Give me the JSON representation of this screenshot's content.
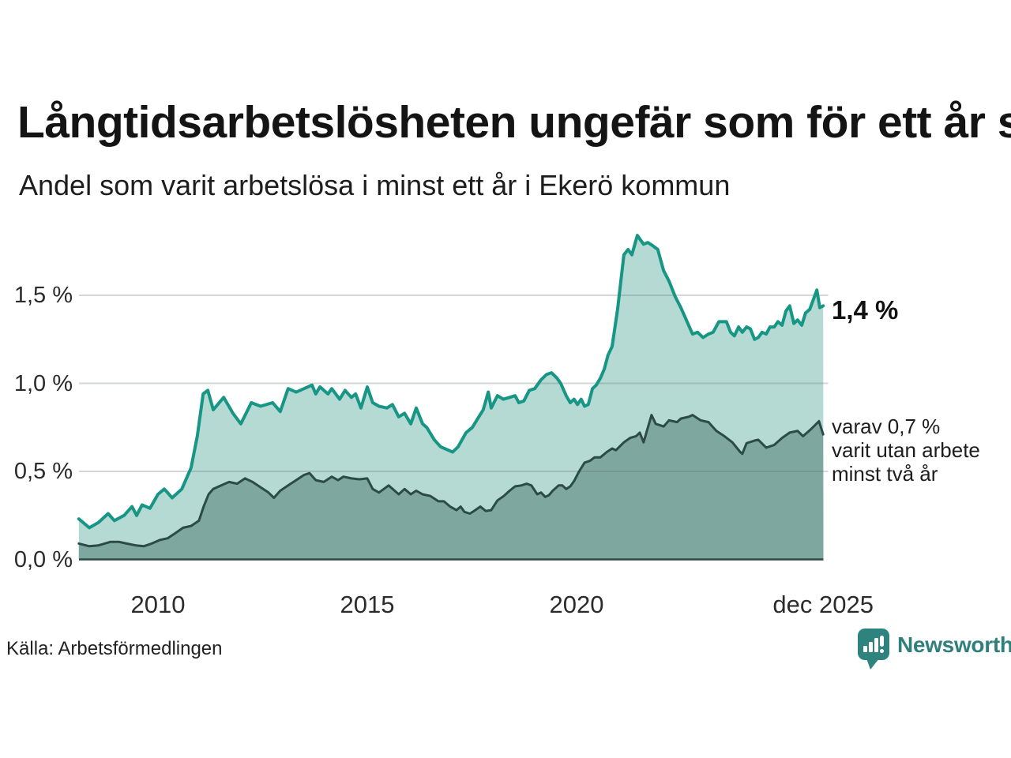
{
  "header": {
    "title": "Långtidsarbetslösheten ungefär som för ett år sen",
    "subtitle": "Andel som varit arbetslösa i minst ett år i Ekerö kommun"
  },
  "chart_data": {
    "type": "area",
    "title": "Långtidsarbetslösheten ungefär som för ett år sen",
    "subtitle": "Andel som varit arbetslösa i minst ett år i Ekerö kommun",
    "unit": "%",
    "grid": true,
    "ylim": [
      0,
      1.9
    ],
    "x_range": [
      2008.11,
      2025.92
    ],
    "y_ticks": [
      {
        "value": 0.0,
        "label": "0,0 %"
      },
      {
        "value": 0.5,
        "label": "0,5 %"
      },
      {
        "value": 1.0,
        "label": "1,0 %"
      },
      {
        "value": 1.5,
        "label": "1,5 %"
      }
    ],
    "x_ticks": [
      {
        "year": 2010,
        "label": "2010"
      },
      {
        "year": 2015,
        "label": "2015"
      },
      {
        "year": 2020,
        "label": "2020"
      },
      {
        "year": 2025.89,
        "label": "dec 2025"
      }
    ],
    "series": [
      {
        "name": "arbetslösa minst ett år",
        "color": "#179585",
        "fill": "#b4dad3",
        "end_value_label": "1,4 %",
        "points": [
          [
            2008.11,
            0.23
          ],
          [
            2008.36,
            0.18
          ],
          [
            2008.58,
            0.21
          ],
          [
            2008.81,
            0.26
          ],
          [
            2008.96,
            0.22
          ],
          [
            2009.19,
            0.25
          ],
          [
            2009.38,
            0.3
          ],
          [
            2009.49,
            0.25
          ],
          [
            2009.62,
            0.31
          ],
          [
            2009.81,
            0.29
          ],
          [
            2010.0,
            0.37
          ],
          [
            2010.15,
            0.4
          ],
          [
            2010.34,
            0.35
          ],
          [
            2010.57,
            0.4
          ],
          [
            2010.79,
            0.52
          ],
          [
            2010.94,
            0.7
          ],
          [
            2011.08,
            0.94
          ],
          [
            2011.19,
            0.96
          ],
          [
            2011.32,
            0.85
          ],
          [
            2011.57,
            0.92
          ],
          [
            2011.79,
            0.83
          ],
          [
            2011.98,
            0.77
          ],
          [
            2012.23,
            0.89
          ],
          [
            2012.45,
            0.87
          ],
          [
            2012.74,
            0.89
          ],
          [
            2012.92,
            0.84
          ],
          [
            2013.11,
            0.97
          ],
          [
            2013.3,
            0.95
          ],
          [
            2013.49,
            0.97
          ],
          [
            2013.68,
            0.99
          ],
          [
            2013.77,
            0.94
          ],
          [
            2013.87,
            0.98
          ],
          [
            2014.06,
            0.94
          ],
          [
            2014.15,
            0.97
          ],
          [
            2014.34,
            0.91
          ],
          [
            2014.47,
            0.96
          ],
          [
            2014.62,
            0.92
          ],
          [
            2014.72,
            0.94
          ],
          [
            2014.85,
            0.86
          ],
          [
            2015.0,
            0.98
          ],
          [
            2015.13,
            0.89
          ],
          [
            2015.28,
            0.87
          ],
          [
            2015.47,
            0.86
          ],
          [
            2015.6,
            0.88
          ],
          [
            2015.75,
            0.81
          ],
          [
            2015.89,
            0.83
          ],
          [
            2016.04,
            0.77
          ],
          [
            2016.17,
            0.86
          ],
          [
            2016.32,
            0.77
          ],
          [
            2016.42,
            0.75
          ],
          [
            2016.6,
            0.68
          ],
          [
            2016.75,
            0.64
          ],
          [
            2017.04,
            0.61
          ],
          [
            2017.17,
            0.64
          ],
          [
            2017.36,
            0.72
          ],
          [
            2017.51,
            0.75
          ],
          [
            2017.64,
            0.8
          ],
          [
            2017.77,
            0.85
          ],
          [
            2017.89,
            0.95
          ],
          [
            2017.96,
            0.86
          ],
          [
            2018.11,
            0.93
          ],
          [
            2018.25,
            0.91
          ],
          [
            2018.4,
            0.92
          ],
          [
            2018.53,
            0.93
          ],
          [
            2018.62,
            0.89
          ],
          [
            2018.74,
            0.9
          ],
          [
            2018.87,
            0.96
          ],
          [
            2019.0,
            0.97
          ],
          [
            2019.15,
            1.02
          ],
          [
            2019.28,
            1.05
          ],
          [
            2019.4,
            1.06
          ],
          [
            2019.53,
            1.03
          ],
          [
            2019.62,
            1.0
          ],
          [
            2019.75,
            0.93
          ],
          [
            2019.85,
            0.89
          ],
          [
            2019.94,
            0.91
          ],
          [
            2020.02,
            0.88
          ],
          [
            2020.11,
            0.91
          ],
          [
            2020.19,
            0.87
          ],
          [
            2020.28,
            0.88
          ],
          [
            2020.38,
            0.97
          ],
          [
            2020.47,
            0.99
          ],
          [
            2020.57,
            1.03
          ],
          [
            2020.66,
            1.08
          ],
          [
            2020.75,
            1.16
          ],
          [
            2020.85,
            1.21
          ],
          [
            2020.98,
            1.42
          ],
          [
            2021.13,
            1.73
          ],
          [
            2021.23,
            1.76
          ],
          [
            2021.32,
            1.73
          ],
          [
            2021.45,
            1.84
          ],
          [
            2021.6,
            1.79
          ],
          [
            2021.7,
            1.8
          ],
          [
            2021.83,
            1.78
          ],
          [
            2021.94,
            1.76
          ],
          [
            2022.08,
            1.64
          ],
          [
            2022.21,
            1.58
          ],
          [
            2022.36,
            1.49
          ],
          [
            2022.49,
            1.43
          ],
          [
            2022.64,
            1.35
          ],
          [
            2022.77,
            1.28
          ],
          [
            2022.89,
            1.29
          ],
          [
            2023.02,
            1.26
          ],
          [
            2023.15,
            1.28
          ],
          [
            2023.26,
            1.29
          ],
          [
            2023.4,
            1.35
          ],
          [
            2023.58,
            1.35
          ],
          [
            2023.68,
            1.29
          ],
          [
            2023.77,
            1.27
          ],
          [
            2023.87,
            1.32
          ],
          [
            2023.96,
            1.29
          ],
          [
            2024.06,
            1.32
          ],
          [
            2024.15,
            1.31
          ],
          [
            2024.25,
            1.25
          ],
          [
            2024.34,
            1.26
          ],
          [
            2024.43,
            1.29
          ],
          [
            2024.53,
            1.28
          ],
          [
            2024.62,
            1.32
          ],
          [
            2024.72,
            1.32
          ],
          [
            2024.81,
            1.35
          ],
          [
            2024.91,
            1.33
          ],
          [
            2025.0,
            1.41
          ],
          [
            2025.09,
            1.44
          ],
          [
            2025.19,
            1.34
          ],
          [
            2025.28,
            1.36
          ],
          [
            2025.38,
            1.33
          ],
          [
            2025.47,
            1.4
          ],
          [
            2025.57,
            1.42
          ],
          [
            2025.74,
            1.53
          ],
          [
            2025.81,
            1.43
          ],
          [
            2025.89,
            1.44
          ]
        ]
      },
      {
        "name": "varav utan arbete minst två år",
        "color": "#2c4b46",
        "fill": "#7da79f",
        "end_value_label": "0,7 %",
        "points": [
          [
            2008.11,
            0.09
          ],
          [
            2008.36,
            0.075
          ],
          [
            2008.58,
            0.08
          ],
          [
            2008.87,
            0.1
          ],
          [
            2009.06,
            0.1
          ],
          [
            2009.25,
            0.09
          ],
          [
            2009.47,
            0.08
          ],
          [
            2009.66,
            0.075
          ],
          [
            2009.85,
            0.09
          ],
          [
            2010.04,
            0.11
          ],
          [
            2010.23,
            0.12
          ],
          [
            2010.42,
            0.15
          ],
          [
            2010.6,
            0.18
          ],
          [
            2010.79,
            0.19
          ],
          [
            2010.98,
            0.22
          ],
          [
            2011.09,
            0.3
          ],
          [
            2011.21,
            0.37
          ],
          [
            2011.32,
            0.4
          ],
          [
            2011.51,
            0.42
          ],
          [
            2011.7,
            0.44
          ],
          [
            2011.89,
            0.43
          ],
          [
            2012.08,
            0.46
          ],
          [
            2012.26,
            0.44
          ],
          [
            2012.45,
            0.41
          ],
          [
            2012.64,
            0.38
          ],
          [
            2012.77,
            0.35
          ],
          [
            2012.92,
            0.39
          ],
          [
            2013.11,
            0.42
          ],
          [
            2013.3,
            0.45
          ],
          [
            2013.49,
            0.48
          ],
          [
            2013.62,
            0.49
          ],
          [
            2013.77,
            0.45
          ],
          [
            2013.96,
            0.44
          ],
          [
            2014.15,
            0.47
          ],
          [
            2014.3,
            0.45
          ],
          [
            2014.43,
            0.47
          ],
          [
            2014.62,
            0.46
          ],
          [
            2014.81,
            0.455
          ],
          [
            2015.0,
            0.46
          ],
          [
            2015.13,
            0.4
          ],
          [
            2015.28,
            0.38
          ],
          [
            2015.51,
            0.42
          ],
          [
            2015.75,
            0.37
          ],
          [
            2015.89,
            0.4
          ],
          [
            2016.04,
            0.37
          ],
          [
            2016.17,
            0.39
          ],
          [
            2016.32,
            0.37
          ],
          [
            2016.51,
            0.36
          ],
          [
            2016.7,
            0.33
          ],
          [
            2016.83,
            0.33
          ],
          [
            2016.98,
            0.3
          ],
          [
            2017.13,
            0.28
          ],
          [
            2017.23,
            0.3
          ],
          [
            2017.32,
            0.27
          ],
          [
            2017.45,
            0.26
          ],
          [
            2017.58,
            0.28
          ],
          [
            2017.7,
            0.3
          ],
          [
            2017.83,
            0.275
          ],
          [
            2017.96,
            0.28
          ],
          [
            2018.11,
            0.335
          ],
          [
            2018.26,
            0.36
          ],
          [
            2018.4,
            0.39
          ],
          [
            2018.53,
            0.415
          ],
          [
            2018.68,
            0.42
          ],
          [
            2018.81,
            0.43
          ],
          [
            2018.92,
            0.42
          ],
          [
            2019.06,
            0.37
          ],
          [
            2019.15,
            0.38
          ],
          [
            2019.25,
            0.355
          ],
          [
            2019.34,
            0.365
          ],
          [
            2019.43,
            0.39
          ],
          [
            2019.57,
            0.42
          ],
          [
            2019.66,
            0.42
          ],
          [
            2019.75,
            0.4
          ],
          [
            2019.85,
            0.415
          ],
          [
            2019.94,
            0.445
          ],
          [
            2020.06,
            0.5
          ],
          [
            2020.19,
            0.55
          ],
          [
            2020.32,
            0.56
          ],
          [
            2020.43,
            0.58
          ],
          [
            2020.57,
            0.58
          ],
          [
            2020.72,
            0.61
          ],
          [
            2020.85,
            0.63
          ],
          [
            2020.94,
            0.62
          ],
          [
            2021.13,
            0.665
          ],
          [
            2021.28,
            0.69
          ],
          [
            2021.42,
            0.7
          ],
          [
            2021.51,
            0.72
          ],
          [
            2021.6,
            0.665
          ],
          [
            2021.79,
            0.82
          ],
          [
            2021.89,
            0.77
          ],
          [
            2022.08,
            0.755
          ],
          [
            2022.21,
            0.79
          ],
          [
            2022.4,
            0.78
          ],
          [
            2022.49,
            0.8
          ],
          [
            2022.68,
            0.81
          ],
          [
            2022.77,
            0.82
          ],
          [
            2022.96,
            0.79
          ],
          [
            2023.15,
            0.78
          ],
          [
            2023.34,
            0.73
          ],
          [
            2023.53,
            0.7
          ],
          [
            2023.72,
            0.665
          ],
          [
            2023.91,
            0.61
          ],
          [
            2023.96,
            0.6
          ],
          [
            2024.06,
            0.66
          ],
          [
            2024.25,
            0.675
          ],
          [
            2024.34,
            0.68
          ],
          [
            2024.53,
            0.635
          ],
          [
            2024.72,
            0.65
          ],
          [
            2024.91,
            0.69
          ],
          [
            2025.09,
            0.72
          ],
          [
            2025.28,
            0.73
          ],
          [
            2025.41,
            0.7
          ],
          [
            2025.6,
            0.74
          ],
          [
            2025.79,
            0.785
          ],
          [
            2025.89,
            0.71
          ]
        ]
      }
    ]
  },
  "annotations": {
    "latest_value": "1,4 %",
    "note_lines": [
      "varav 0,7 %",
      "varit utan arbete",
      "minst två år"
    ]
  },
  "footer": {
    "source": "Källa: Arbetsförmedlingen",
    "brand": "Newsworthy"
  },
  "colors": {
    "accent": "#2f7f7b",
    "line_primary": "#179585",
    "fill_primary": "#b4dad3",
    "line_secondary": "#2c4b46",
    "fill_secondary": "#7da79f",
    "grid": "#d9d9d9",
    "text": "#1a1a1a"
  }
}
